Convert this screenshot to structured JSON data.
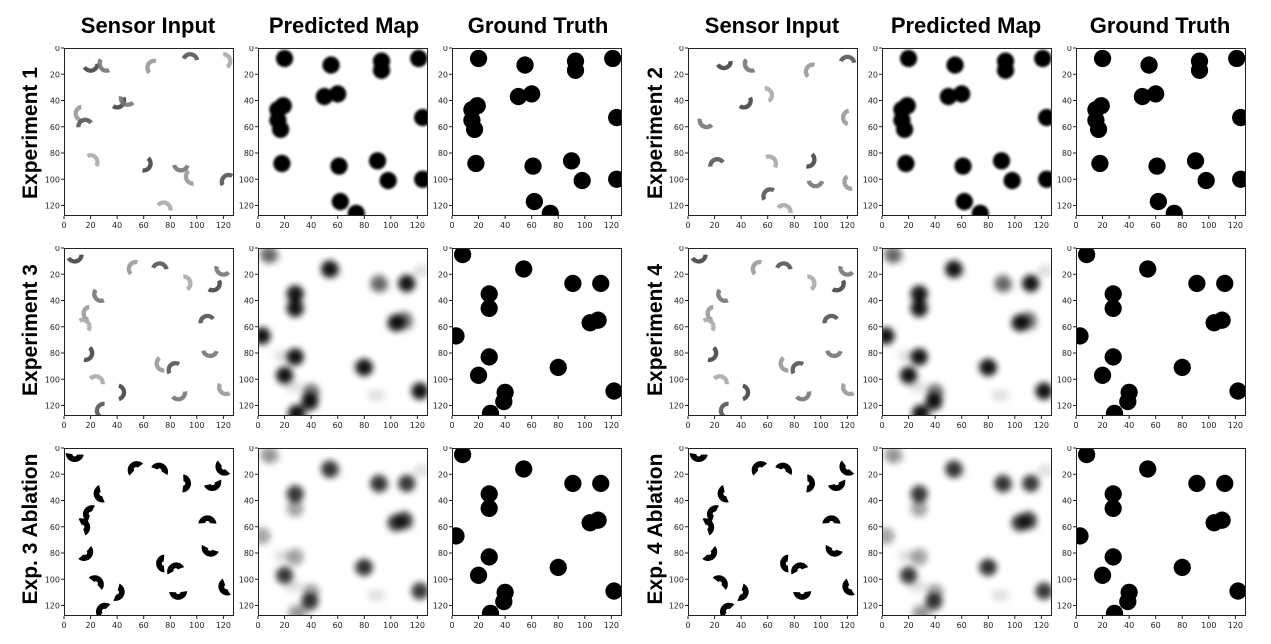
{
  "column_titles": [
    "Sensor Input",
    "Predicted Map",
    "Ground Truth",
    "Sensor Input",
    "Predicted Map",
    "Ground Truth"
  ],
  "row_labels": [
    "Experiment 1",
    "Experiment 2",
    "Experiment 3",
    "Experiment 4",
    "Exp. 3 Ablation",
    "Exp. 4 Ablation"
  ],
  "axis": {
    "x_ticks": [
      0,
      20,
      40,
      60,
      80,
      100,
      120
    ],
    "y_ticks": [
      0,
      20,
      40,
      60,
      80,
      100,
      120
    ],
    "range": [
      0,
      128
    ]
  },
  "chart_data": {
    "type": "heatmap",
    "layout": "3 rows x 6 columns grid of 128x128 occupancy maps",
    "experiments": {
      "experiment_1": {
        "obstacles": [
          [
            20,
            8
          ],
          [
            55,
            13
          ],
          [
            93,
            10
          ],
          [
            93,
            17
          ],
          [
            121,
            8
          ],
          [
            50,
            37
          ],
          [
            60,
            35
          ],
          [
            15,
            47
          ],
          [
            19,
            44
          ],
          [
            15,
            55
          ],
          [
            17,
            62
          ],
          [
            124,
            53
          ],
          [
            18,
            88
          ],
          [
            61,
            90
          ],
          [
            90,
            86
          ],
          [
            98,
            101
          ],
          [
            124,
            100
          ],
          [
            62,
            117
          ],
          [
            74,
            126
          ]
        ],
        "sensor_arcs": [
          [
            20,
            12
          ],
          [
            32,
            12
          ],
          [
            68,
            15
          ],
          [
            95,
            10
          ],
          [
            120,
            10
          ],
          [
            40,
            40
          ],
          [
            48,
            38
          ],
          [
            14,
            50
          ],
          [
            16,
            60
          ],
          [
            20,
            87
          ],
          [
            60,
            88
          ],
          [
            88,
            88
          ],
          [
            97,
            98
          ],
          [
            124,
            102
          ],
          [
            75,
            123
          ]
        ]
      },
      "experiment_2": {
        "obstacles": [
          [
            20,
            8
          ],
          [
            55,
            13
          ],
          [
            93,
            10
          ],
          [
            93,
            17
          ],
          [
            121,
            8
          ],
          [
            50,
            37
          ],
          [
            60,
            35
          ],
          [
            15,
            47
          ],
          [
            19,
            44
          ],
          [
            15,
            55
          ],
          [
            17,
            62
          ],
          [
            124,
            53
          ],
          [
            18,
            88
          ],
          [
            61,
            90
          ],
          [
            90,
            86
          ],
          [
            98,
            101
          ],
          [
            124,
            100
          ],
          [
            62,
            117
          ],
          [
            74,
            126
          ]
        ],
        "sensor_arcs": [
          [
            27,
            10
          ],
          [
            48,
            12
          ],
          [
            94,
            18
          ],
          [
            120,
            12
          ],
          [
            58,
            36
          ],
          [
            42,
            40
          ],
          [
            14,
            55
          ],
          [
            122,
            53
          ],
          [
            22,
            90
          ],
          [
            61,
            88
          ],
          [
            90,
            85
          ],
          [
            96,
            100
          ],
          [
            123,
            102
          ],
          [
            62,
            113
          ],
          [
            72,
            125
          ]
        ]
      },
      "experiment_3": {
        "obstacles": [
          [
            8,
            5
          ],
          [
            54,
            16
          ],
          [
            28,
            35
          ],
          [
            28,
            46
          ],
          [
            91,
            27
          ],
          [
            112,
            27
          ],
          [
            3,
            67
          ],
          [
            104,
            57
          ],
          [
            110,
            55
          ],
          [
            28,
            83
          ],
          [
            80,
            91
          ],
          [
            20,
            97
          ],
          [
            40,
            110
          ],
          [
            39,
            117
          ],
          [
            122,
            109
          ],
          [
            29,
            126
          ]
        ],
        "sensor_arcs": [
          [
            8,
            5
          ],
          [
            28,
            35
          ],
          [
            54,
            16
          ],
          [
            72,
            17
          ],
          [
            90,
            27
          ],
          [
            112,
            27
          ],
          [
            120,
            15
          ],
          [
            20,
            50
          ],
          [
            108,
            57
          ],
          [
            14,
            60
          ],
          [
            16,
            80
          ],
          [
            110,
            77
          ],
          [
            75,
            88
          ],
          [
            84,
            93
          ],
          [
            24,
            103
          ],
          [
            40,
            110
          ],
          [
            86,
            110
          ],
          [
            122,
            106
          ],
          [
            30,
            124
          ]
        ]
      },
      "experiment_4": {
        "obstacles": [
          [
            8,
            5
          ],
          [
            54,
            16
          ],
          [
            28,
            35
          ],
          [
            28,
            46
          ],
          [
            91,
            27
          ],
          [
            112,
            27
          ],
          [
            3,
            67
          ],
          [
            104,
            57
          ],
          [
            110,
            55
          ],
          [
            28,
            83
          ],
          [
            80,
            91
          ],
          [
            20,
            97
          ],
          [
            40,
            110
          ],
          [
            39,
            117
          ],
          [
            122,
            109
          ],
          [
            29,
            126
          ]
        ],
        "sensor_arcs": [
          [
            8,
            5
          ],
          [
            28,
            35
          ],
          [
            54,
            16
          ],
          [
            72,
            17
          ],
          [
            90,
            27
          ],
          [
            112,
            27
          ],
          [
            120,
            15
          ],
          [
            20,
            50
          ],
          [
            108,
            57
          ],
          [
            14,
            60
          ],
          [
            16,
            80
          ],
          [
            110,
            77
          ],
          [
            75,
            88
          ],
          [
            84,
            93
          ],
          [
            24,
            103
          ],
          [
            40,
            110
          ],
          [
            86,
            110
          ],
          [
            122,
            106
          ],
          [
            30,
            124
          ]
        ]
      }
    }
  }
}
